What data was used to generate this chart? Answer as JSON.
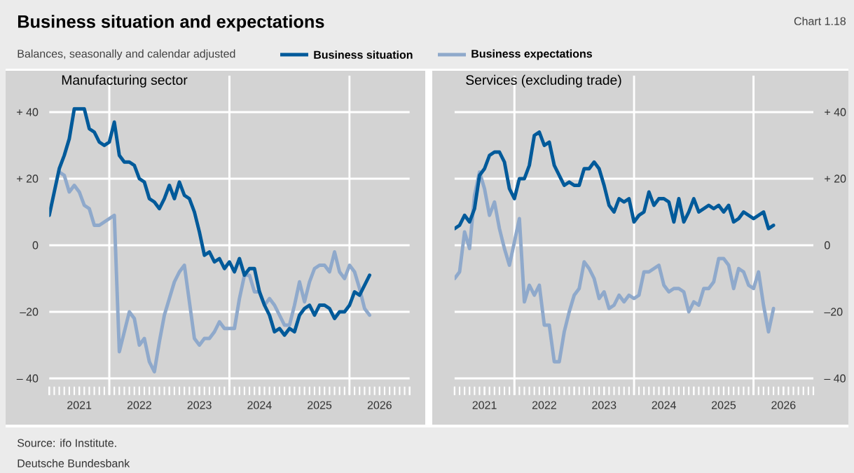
{
  "chart_data": [
    {
      "type": "other",
      "title": "Business situation and expectations",
      "subtitle": "Balances, seasonally and calendar adjusted",
      "annotations": [
        "Chart 1.18",
        "Source: ifo Institute.",
        "Deutsche Bundesbank"
      ]
    },
    {
      "type": "line",
      "title": "Manufacturing sector",
      "legend": "top",
      "grid": "y",
      "x": [
        "2021-01",
        "2021-02",
        "2021-03",
        "2021-04",
        "2021-05",
        "2021-06",
        "2021-07",
        "2021-08",
        "2021-09",
        "2021-10",
        "2021-11",
        "2021-12",
        "2022-01",
        "2022-02",
        "2022-03",
        "2022-04",
        "2022-05",
        "2022-06",
        "2022-07",
        "2022-08",
        "2022-09",
        "2022-10",
        "2022-11",
        "2022-12",
        "2023-01",
        "2023-02",
        "2023-03",
        "2023-04",
        "2023-05",
        "2023-06",
        "2023-07",
        "2023-08",
        "2023-09",
        "2023-10",
        "2023-11",
        "2023-12",
        "2024-01",
        "2024-02",
        "2024-03",
        "2024-04",
        "2024-05",
        "2024-06",
        "2024-07",
        "2024-08",
        "2024-09",
        "2024-10",
        "2024-11",
        "2024-12",
        "2025-01",
        "2025-02",
        "2025-03",
        "2025-04",
        "2025-05",
        "2025-06",
        "2025-07",
        "2025-08",
        "2025-09",
        "2025-10",
        "2025-11",
        "2025-12",
        "2026-01",
        "2026-02",
        "2026-03",
        "2026-04",
        "2026-05"
      ],
      "xlim": [
        "2021-01",
        "2027-01"
      ],
      "xticks": [
        {
          "value": "2021-01",
          "label": null
        },
        {
          "value": "2021-07",
          "label": "2021"
        },
        {
          "value": "2022-01",
          "label": null
        },
        {
          "value": "2022-07",
          "label": "2022"
        },
        {
          "value": "2023-01",
          "label": null
        },
        {
          "value": "2023-07",
          "label": "2023"
        },
        {
          "value": "2024-01",
          "label": null
        },
        {
          "value": "2024-07",
          "label": "2024"
        },
        {
          "value": "2025-01",
          "label": null
        },
        {
          "value": "2025-07",
          "label": "2025"
        },
        {
          "value": "2026-01",
          "label": null
        },
        {
          "value": "2026-07",
          "label": "2026"
        },
        {
          "value": "2027-01",
          "label": null
        }
      ],
      "ylim": [
        -45,
        51
      ],
      "yticks": [
        {
          "value": 40,
          "label": "+ 40"
        },
        {
          "value": 20,
          "label": "+ 20"
        },
        0,
        {
          "value": -20,
          "label": "–20"
        },
        {
          "value": -40,
          "label": "– 40"
        }
      ],
      "ref_lines": [
        {
          "axis": "x",
          "value": "2022-01",
          "color": "#ffffff"
        },
        {
          "axis": "x",
          "value": "2024-01",
          "color": "#ffffff"
        },
        {
          "axis": "x",
          "value": "2026-01",
          "color": "#ffffff"
        }
      ],
      "series": [
        {
          "name": "Business situation",
          "color": "#005a9a",
          "values": [
            9,
            16,
            23,
            27,
            32,
            41,
            41,
            41,
            35,
            34,
            31,
            30,
            31,
            37,
            27,
            25,
            25,
            24,
            20,
            19,
            14,
            13,
            11,
            14,
            18,
            14,
            19,
            15,
            14,
            10,
            4,
            -3,
            -2,
            -5,
            -4,
            -7,
            -5,
            -8,
            -4,
            -9,
            -7,
            -7,
            -14,
            -18,
            -21,
            -26,
            -25,
            -27,
            -25,
            -26,
            -21,
            -19,
            -18,
            -21,
            -18,
            -18,
            -19,
            -22,
            -20,
            -20,
            -18,
            -14,
            -15,
            -12,
            -9
          ]
        },
        {
          "name": "Business expectations",
          "color": "#8fa9cb",
          "values": [
            null,
            null,
            22,
            21,
            16,
            18,
            16,
            12,
            11,
            6,
            6,
            7,
            8,
            9,
            -32,
            -26,
            -20,
            -22,
            -30,
            -28,
            -35,
            -38,
            -29,
            -21,
            -16,
            -11,
            -8,
            -6,
            -17,
            -28,
            -30,
            -28,
            -28,
            -26,
            -23,
            -25,
            -25,
            -25,
            -16,
            -9,
            -9,
            -14,
            -14,
            -18,
            -16,
            -18,
            -21,
            -24,
            -24,
            -18,
            -11,
            -17,
            -11,
            -7,
            -6,
            -6,
            -8,
            -2,
            -8,
            -10,
            -6,
            -8,
            -13,
            -19,
            -21
          ]
        }
      ]
    },
    {
      "type": "line",
      "title": "Services (excluding trade)",
      "grid": "y",
      "x": [
        "2021-01",
        "2021-02",
        "2021-03",
        "2021-04",
        "2021-05",
        "2021-06",
        "2021-07",
        "2021-08",
        "2021-09",
        "2021-10",
        "2021-11",
        "2021-12",
        "2022-01",
        "2022-02",
        "2022-03",
        "2022-04",
        "2022-05",
        "2022-06",
        "2022-07",
        "2022-08",
        "2022-09",
        "2022-10",
        "2022-11",
        "2022-12",
        "2023-01",
        "2023-02",
        "2023-03",
        "2023-04",
        "2023-05",
        "2023-06",
        "2023-07",
        "2023-08",
        "2023-09",
        "2023-10",
        "2023-11",
        "2023-12",
        "2024-01",
        "2024-02",
        "2024-03",
        "2024-04",
        "2024-05",
        "2024-06",
        "2024-07",
        "2024-08",
        "2024-09",
        "2024-10",
        "2024-11",
        "2024-12",
        "2025-01",
        "2025-02",
        "2025-03",
        "2025-04",
        "2025-05",
        "2025-06",
        "2025-07",
        "2025-08",
        "2025-09",
        "2025-10",
        "2025-11",
        "2025-12",
        "2026-01",
        "2026-02",
        "2026-03",
        "2026-04",
        "2026-05"
      ],
      "xlim": [
        "2021-01",
        "2027-01"
      ],
      "xticks": [
        {
          "value": "2021-01",
          "label": null
        },
        {
          "value": "2021-07",
          "label": "2021"
        },
        {
          "value": "2022-01",
          "label": null
        },
        {
          "value": "2022-07",
          "label": "2022"
        },
        {
          "value": "2023-01",
          "label": null
        },
        {
          "value": "2023-07",
          "label": "2023"
        },
        {
          "value": "2024-01",
          "label": null
        },
        {
          "value": "2024-07",
          "label": "2024"
        },
        {
          "value": "2025-01",
          "label": null
        },
        {
          "value": "2025-07",
          "label": "2025"
        },
        {
          "value": "2026-01",
          "label": null
        },
        {
          "value": "2026-07",
          "label": "2026"
        },
        {
          "value": "2027-01",
          "label": null
        }
      ],
      "ylim": [
        -45,
        51
      ],
      "yticks": [
        {
          "value": 40,
          "label": "+ 40"
        },
        {
          "value": 20,
          "label": "+ 20"
        },
        0,
        {
          "value": -20,
          "label": "–20"
        },
        {
          "value": -40,
          "label": "– 40"
        }
      ],
      "ref_lines": [
        {
          "axis": "x",
          "value": "2022-01",
          "color": "#ffffff"
        },
        {
          "axis": "x",
          "value": "2024-01",
          "color": "#ffffff"
        },
        {
          "axis": "x",
          "value": "2026-01",
          "color": "#ffffff"
        }
      ],
      "series": [
        {
          "color": "#005a9a",
          "values": [
            5,
            6,
            9,
            7,
            11,
            21,
            23,
            27,
            28,
            28,
            25,
            17,
            14,
            20,
            20,
            24,
            33,
            34,
            30,
            31,
            24,
            21,
            18,
            19,
            18,
            18,
            23,
            23,
            25,
            23,
            18,
            12,
            10,
            14,
            13,
            14,
            7,
            9,
            10,
            16,
            12,
            14,
            14,
            13,
            7,
            14,
            7,
            10,
            14,
            10,
            11,
            12,
            11,
            12,
            10,
            12,
            7,
            8,
            10,
            9,
            8,
            9,
            10,
            5,
            6
          ]
        },
        {
          "color": "#8fa9cb",
          "values": [
            -10,
            -8,
            4,
            -1,
            15,
            22,
            17,
            9,
            13,
            5,
            -1,
            -6,
            1,
            8,
            -17,
            -12,
            -15,
            -12,
            -24,
            -24,
            -35,
            -35,
            -26,
            -20,
            -15,
            -13,
            -5,
            -7,
            -10,
            -16,
            -14,
            -19,
            -18,
            -15,
            -17,
            -15,
            -16,
            -15,
            -8,
            -8,
            -7,
            -6,
            -12,
            -14,
            -13,
            -13,
            -14,
            -20,
            -17,
            -18,
            -13,
            -13,
            -11,
            -4,
            -4,
            -6,
            -13,
            -7,
            -8,
            -12,
            -13,
            -8,
            -18,
            -26,
            -19
          ]
        }
      ]
    }
  ]
}
